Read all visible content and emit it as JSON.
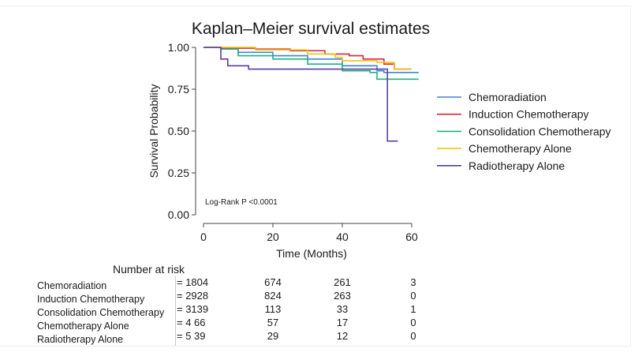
{
  "chart_data": {
    "type": "line",
    "title": "Kaplan–Meier survival estimates",
    "xlabel": "Time (Months)",
    "ylabel": "Survival Probability",
    "xlim": [
      0,
      62
    ],
    "ylim": [
      0,
      1
    ],
    "x_ticks": [
      0,
      20,
      40,
      60
    ],
    "y_ticks": [
      "0.00",
      "0.25",
      "0.50",
      "0.75",
      "1.00"
    ],
    "grid": false,
    "legend_position": "right",
    "annotation": "Log-Rank P <0.0001",
    "series": [
      {
        "name": "Chemoradiation",
        "color": "#3a86d6",
        "points": [
          [
            0,
            1.0
          ],
          [
            5,
            0.99
          ],
          [
            10,
            0.97
          ],
          [
            20,
            0.95
          ],
          [
            30,
            0.93
          ],
          [
            40,
            0.89
          ],
          [
            50,
            0.86
          ],
          [
            52,
            0.85
          ],
          [
            62,
            0.85
          ]
        ]
      },
      {
        "name": "Induction Chemotherapy",
        "color": "#d7263d",
        "points": [
          [
            0,
            1.0
          ],
          [
            5,
            0.995
          ],
          [
            15,
            0.99
          ],
          [
            25,
            0.98
          ],
          [
            35,
            0.96
          ],
          [
            42,
            0.95
          ],
          [
            46,
            0.93
          ],
          [
            52,
            0.9
          ],
          [
            55,
            0.87
          ],
          [
            60,
            0.87
          ]
        ]
      },
      {
        "name": "Consolidation Chemotherapy",
        "color": "#21b07e",
        "points": [
          [
            0,
            1.0
          ],
          [
            5,
            0.99
          ],
          [
            10,
            0.95
          ],
          [
            20,
            0.93
          ],
          [
            30,
            0.9
          ],
          [
            40,
            0.86
          ],
          [
            48,
            0.85
          ],
          [
            50,
            0.81
          ],
          [
            62,
            0.81
          ]
        ]
      },
      {
        "name": "Chemotherapy Alone",
        "color": "#f2c40f",
        "points": [
          [
            0,
            1.0
          ],
          [
            5,
            1.0
          ],
          [
            15,
            0.985
          ],
          [
            30,
            0.96
          ],
          [
            38,
            0.94
          ],
          [
            40,
            0.92
          ],
          [
            48,
            0.92
          ],
          [
            50,
            0.91
          ],
          [
            55,
            0.87
          ],
          [
            60,
            0.87
          ]
        ]
      },
      {
        "name": "Radiotherapy Alone",
        "color": "#5b3fa0",
        "points": [
          [
            0,
            1.0
          ],
          [
            4,
            1.0
          ],
          [
            5,
            0.93
          ],
          [
            7,
            0.89
          ],
          [
            12,
            0.89
          ],
          [
            13,
            0.87
          ],
          [
            45,
            0.87
          ],
          [
            53,
            0.87
          ],
          [
            53,
            0.44
          ],
          [
            56,
            0.44
          ]
        ]
      }
    ],
    "number_at_risk": {
      "title": "Number at risk",
      "rows": [
        {
          "label": "Chemoradiation",
          "values": [
            "= 1804",
            "674",
            "261",
            "3"
          ]
        },
        {
          "label": "Induction Chemotherapy",
          "values": [
            "= 2928",
            "824",
            "263",
            "0"
          ]
        },
        {
          "label": "Consolidation Chemotherapy",
          "values": [
            "= 3139",
            "113",
            "33",
            "1"
          ]
        },
        {
          "label": "Chemotherapy Alone",
          "values": [
            "= 4 66",
            "57",
            "17",
            "0"
          ]
        },
        {
          "label": "Radiotherapy Alone",
          "values": [
            "= 5 39",
            "29",
            "12",
            "0"
          ]
        }
      ]
    }
  }
}
